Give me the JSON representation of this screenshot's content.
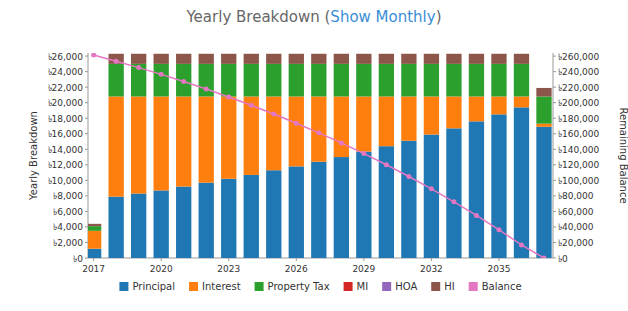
{
  "chart_data": {
    "type": "bar",
    "title": "Yearly Breakdown (Show Monthly)",
    "y_label": "Yearly Breakdown",
    "y2_label": "Remaining Balance",
    "stacked": true,
    "grid": false,
    "legend": "bottom",
    "x": [
      2017,
      2018,
      2019,
      2020,
      2021,
      2022,
      2023,
      2024,
      2025,
      2026,
      2027,
      2028,
      2029,
      2030,
      2031,
      2032,
      2033,
      2034,
      2035,
      2036,
      2037
    ],
    "xlim": [
      2016.75,
      2037.4
    ],
    "xticks": [
      2017,
      2020,
      2023,
      2026,
      2029,
      2032,
      2035
    ],
    "ylim": [
      0,
      26400
    ],
    "yticks": [
      {
        "value": 0,
        "label": "৳0"
      },
      {
        "value": 2000,
        "label": "৳2,000"
      },
      {
        "value": 4000,
        "label": "৳4,000"
      },
      {
        "value": 6000,
        "label": "৳6,000"
      },
      {
        "value": 8000,
        "label": "৳8,000"
      },
      {
        "value": 10000,
        "label": "৳10,000"
      },
      {
        "value": 12000,
        "label": "৳12,000"
      },
      {
        "value": 14000,
        "label": "৳14,000"
      },
      {
        "value": 16000,
        "label": "৳16,000"
      },
      {
        "value": 18000,
        "label": "৳18,000"
      },
      {
        "value": 20000,
        "label": "৳20,000"
      },
      {
        "value": 22000,
        "label": "৳22,000"
      },
      {
        "value": 24000,
        "label": "৳24,000"
      },
      {
        "value": 26000,
        "label": "৳26,000"
      }
    ],
    "y2lim": [
      0,
      264000
    ],
    "y2ticks": [
      {
        "value": 0,
        "label": "৳0"
      },
      {
        "value": 20000,
        "label": "৳20,000"
      },
      {
        "value": 40000,
        "label": "৳40,000"
      },
      {
        "value": 60000,
        "label": "৳60,000"
      },
      {
        "value": 80000,
        "label": "৳80,000"
      },
      {
        "value": 100000,
        "label": "৳100,000"
      },
      {
        "value": 120000,
        "label": "৳120,000"
      },
      {
        "value": 140000,
        "label": "৳140,000"
      },
      {
        "value": 160000,
        "label": "৳160,000"
      },
      {
        "value": 180000,
        "label": "৳180,000"
      },
      {
        "value": 200000,
        "label": "৳200,000"
      },
      {
        "value": 220000,
        "label": "৳220,000"
      },
      {
        "value": 240000,
        "label": "৳240,000"
      },
      {
        "value": 260000,
        "label": "৳260,000"
      }
    ],
    "series": [
      {
        "name": "Principal",
        "color": "#1f77b4",
        "type": "bar",
        "values": [
          1200,
          7900,
          8300,
          8700,
          9200,
          9700,
          10200,
          10700,
          11300,
          11800,
          12400,
          13000,
          13700,
          14400,
          15100,
          15900,
          16700,
          17600,
          18500,
          19400,
          16900
        ]
      },
      {
        "name": "Interest",
        "color": "#ff7f0e",
        "type": "bar",
        "values": [
          2300,
          12900,
          12500,
          12100,
          11600,
          11100,
          10600,
          10100,
          9500,
          9000,
          8400,
          7800,
          7100,
          6400,
          5700,
          4900,
          4100,
          3200,
          2300,
          1400,
          400
        ]
      },
      {
        "name": "Property Tax",
        "color": "#2ca02c",
        "type": "bar",
        "values": [
          600,
          4200,
          4200,
          4200,
          4200,
          4200,
          4200,
          4200,
          4200,
          4200,
          4200,
          4200,
          4200,
          4200,
          4200,
          4200,
          4200,
          4200,
          4200,
          4200,
          3500
        ]
      },
      {
        "name": "MI",
        "color": "#d62728",
        "type": "bar",
        "values": [
          0,
          0,
          0,
          0,
          0,
          0,
          0,
          0,
          0,
          0,
          0,
          0,
          0,
          0,
          0,
          0,
          0,
          0,
          0,
          0,
          0
        ]
      },
      {
        "name": "HOA",
        "color": "#9467bd",
        "type": "bar",
        "values": [
          0,
          0,
          0,
          0,
          0,
          0,
          0,
          0,
          0,
          0,
          0,
          0,
          0,
          0,
          0,
          0,
          0,
          0,
          0,
          0,
          0
        ]
      },
      {
        "name": "HI",
        "color": "#8c564b",
        "type": "bar",
        "values": [
          300,
          1300,
          1300,
          1300,
          1300,
          1300,
          1300,
          1300,
          1300,
          1300,
          1300,
          1300,
          1300,
          1300,
          1300,
          1300,
          1300,
          1300,
          1300,
          1300,
          1100
        ]
      },
      {
        "name": "Balance",
        "color": "#e377c2",
        "type": "line",
        "axis": "y2",
        "marker": "circle",
        "values": [
          261400,
          253500,
          245200,
          236500,
          227300,
          217600,
          207400,
          196700,
          185400,
          173600,
          161200,
          148200,
          134500,
          120100,
          105000,
          89100,
          72400,
          54800,
          36300,
          16900,
          0
        ]
      }
    ]
  }
}
